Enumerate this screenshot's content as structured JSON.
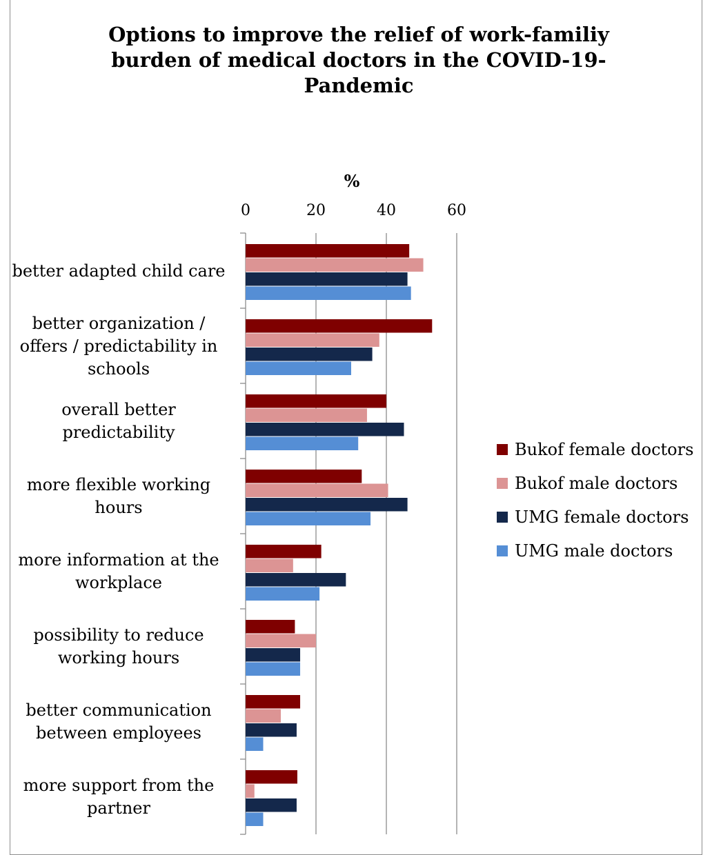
{
  "chart_data": {
    "type": "bar",
    "orientation": "horizontal",
    "title": [
      "Options to improve the relief of work-familiy",
      "burden of medical doctors in the COVID-19-",
      "Pandemic"
    ],
    "xlabel": "%",
    "ylabel": "",
    "xlim": [
      0,
      60
    ],
    "xticks": [
      "0",
      "20",
      "40",
      "60"
    ],
    "grid": true,
    "legend_position": "right",
    "categories": [
      [
        "better adapted child care"
      ],
      [
        "better organization /",
        "offers / predictability in",
        "schools"
      ],
      [
        "overall better",
        "predictability"
      ],
      [
        "more flexible working",
        "hours"
      ],
      [
        "more information at the",
        "workplace"
      ],
      [
        "possibility to reduce",
        "working hours"
      ],
      [
        "better communication",
        "between employees"
      ],
      [
        "more support from the",
        "partner"
      ]
    ],
    "series": [
      {
        "name": "Bukof female doctors",
        "color": "#7f0000",
        "values": [
          46.5,
          53,
          40,
          33,
          21.5,
          14,
          15.5,
          14.7
        ]
      },
      {
        "name": "Bukof male doctors",
        "color": "#dc9494",
        "values": [
          50.5,
          38,
          34.5,
          40.5,
          13.5,
          20,
          10,
          2.5
        ]
      },
      {
        "name": "UMG female doctors",
        "color": "#14284b",
        "values": [
          46,
          36,
          45,
          46,
          28.5,
          15.5,
          14.5,
          14.5
        ]
      },
      {
        "name": "UMG male doctors",
        "color": "#558ed5",
        "values": [
          47,
          30,
          32,
          35.5,
          21,
          15.5,
          5,
          5
        ]
      }
    ]
  }
}
